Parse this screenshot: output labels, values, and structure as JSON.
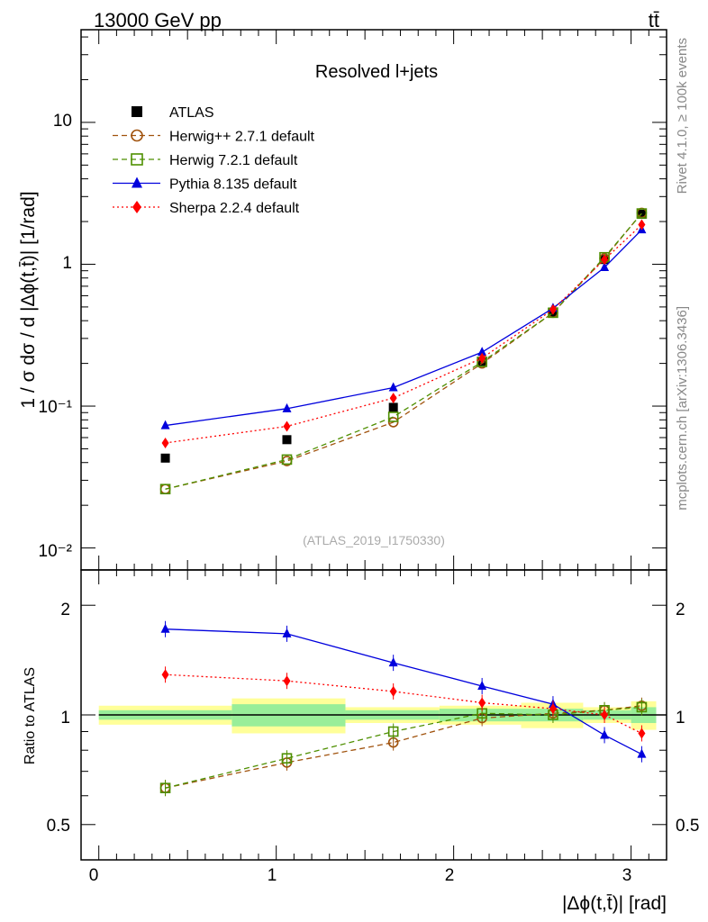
{
  "header": {
    "energy_label": "13000 GeV pp",
    "process_label": "tt̄"
  },
  "side_labels": {
    "rivet": "Rivet 4.1.0, ≥ 100k events",
    "mcplots": "mcplots.cern.ch [arXiv:1306.3436]"
  },
  "main_panel": {
    "title": "Resolved l+jets",
    "analysis_id": "(ATLAS_2019_I1750330)",
    "ylabel": "1 / σ dσ / d |Δϕ(t,t̄)| [1/rad]",
    "ytick_labels": [
      "10⁻²",
      "10⁻¹",
      "1",
      "10"
    ]
  },
  "ratio_panel": {
    "ylabel": "Ratio to ATLAS",
    "ytick_labels": [
      "0.5",
      "1",
      "2"
    ]
  },
  "xaxis": {
    "label": "|Δϕ(t,t̄)| [rad]",
    "tick_labels": [
      "0",
      "1",
      "2",
      "3"
    ]
  },
  "chart_data": {
    "type": "scatter",
    "title": "Resolved l+jets",
    "xlabel": "|Δϕ(t,t̄)| [rad]",
    "ylabel": "1 / σ dσ / d |Δϕ(t,t̄)| [1/rad]",
    "ratio_ylabel": "Ratio to ATLAS",
    "xlim": [
      -0.1,
      3.2
    ],
    "ylim": [
      0.007,
      45
    ],
    "yscale": "log",
    "ratio_ylim": [
      0.4,
      2.5
    ],
    "legend_position": "top-left",
    "x": [
      0.375,
      1.06,
      1.66,
      2.16,
      2.56,
      2.85,
      3.06
    ],
    "bin_edges": [
      0,
      0.75,
      1.39,
      1.92,
      2.38,
      2.73,
      3.0,
      3.1416
    ],
    "ratio_band": [
      {
        "stat": 0.03,
        "total": 0.06
      },
      {
        "stat": 0.07,
        "total": 0.11
      },
      {
        "stat": 0.03,
        "total": 0.05
      },
      {
        "stat": 0.04,
        "total": 0.06
      },
      {
        "stat": 0.04,
        "total": 0.08
      },
      {
        "stat": 0.03,
        "total": 0.05
      },
      {
        "stat": 0.05,
        "total": 0.09
      }
    ],
    "series": [
      {
        "name": "ATLAS",
        "color": "#000000",
        "marker": "square-filled",
        "line": "none",
        "values": [
          0.043,
          0.058,
          0.098,
          0.205,
          0.46,
          1.08,
          2.25
        ],
        "ratio": [
          1,
          1,
          1,
          1,
          1,
          1,
          1
        ]
      },
      {
        "name": "Herwig++ 2.7.1 default",
        "color": "#a0520d",
        "marker": "circle-open",
        "line": "dashed",
        "values": [
          0.026,
          0.041,
          0.077,
          0.2,
          0.455,
          1.1,
          2.3
        ],
        "ratio": [
          0.63,
          0.74,
          0.84,
          0.98,
          1.01,
          1.03,
          1.06
        ]
      },
      {
        "name": "Herwig 7.2.1 default",
        "color": "#4e8f00",
        "marker": "square-open",
        "line": "dashed",
        "values": [
          0.026,
          0.042,
          0.084,
          0.205,
          0.455,
          1.12,
          2.28
        ],
        "ratio": [
          0.63,
          0.76,
          0.9,
          1.01,
          1.0,
          1.03,
          1.05
        ]
      },
      {
        "name": "Pythia 8.135 default",
        "color": "#0000dd",
        "marker": "triangle-filled",
        "line": "solid",
        "values": [
          0.073,
          0.096,
          0.135,
          0.24,
          0.49,
          0.95,
          1.75
        ],
        "ratio": [
          1.72,
          1.67,
          1.39,
          1.2,
          1.07,
          0.88,
          0.78
        ]
      },
      {
        "name": "Sherpa 2.2.4 default",
        "color": "#ff0000",
        "marker": "diamond-filled",
        "line": "dotted",
        "values": [
          0.055,
          0.072,
          0.114,
          0.218,
          0.48,
          1.08,
          1.9
        ],
        "ratio": [
          1.29,
          1.24,
          1.16,
          1.08,
          1.04,
          1.0,
          0.89
        ]
      }
    ]
  }
}
